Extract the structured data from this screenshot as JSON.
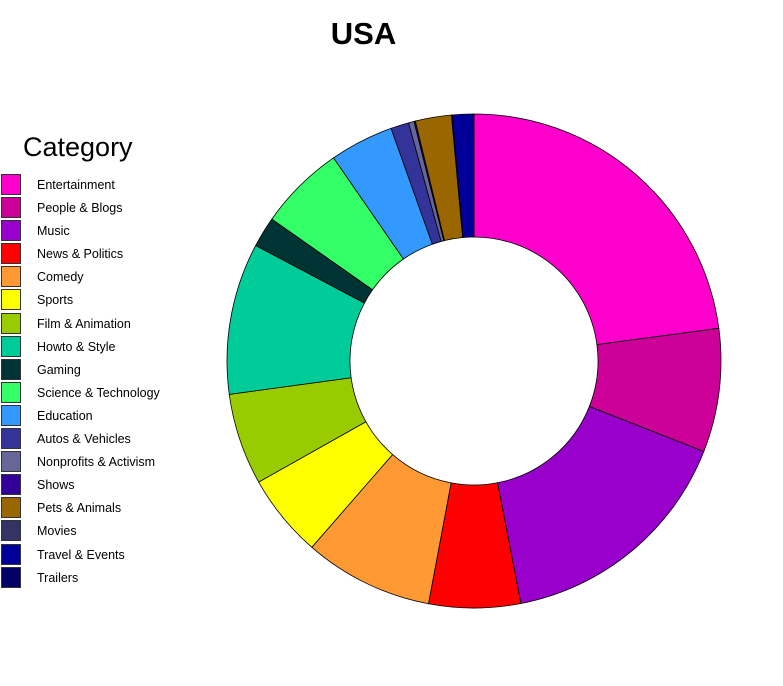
{
  "chart_data": {
    "type": "pie",
    "variant": "donut",
    "title": "USA",
    "legend_title": "Category",
    "legend_position": "left",
    "start": "top, clockwise",
    "slices": [
      {
        "name": "Entertainment",
        "value": 25.2,
        "color": "#ff00cc"
      },
      {
        "name": "People & Blogs",
        "value": 8.9,
        "color": "#cc0099"
      },
      {
        "name": "Music",
        "value": 17.6,
        "color": "#9900cc"
      },
      {
        "name": "News & Politics",
        "value": 6.6,
        "color": "#ff0000"
      },
      {
        "name": "Comedy",
        "value": 9.3,
        "color": "#ff9933"
      },
      {
        "name": "Sports",
        "value": 6.0,
        "color": "#ffff00"
      },
      {
        "name": "Film & Animation",
        "value": 6.6,
        "color": "#99cc00"
      },
      {
        "name": "Howto & Style",
        "value": 10.9,
        "color": "#00cc99"
      },
      {
        "name": "Gaming",
        "value": 2.2,
        "color": "#003333"
      },
      {
        "name": "Science & Technology",
        "value": 6.2,
        "color": "#33ff66"
      },
      {
        "name": "Education",
        "value": 4.6,
        "color": "#3399ff"
      },
      {
        "name": "Autos & Vehicles",
        "value": 1.3,
        "color": "#333399"
      },
      {
        "name": "Nonprofits & Activism",
        "value": 0.4,
        "color": "#666699"
      },
      {
        "name": "Shows",
        "value": 0.1,
        "color": "#330099"
      },
      {
        "name": "Pets & Animals",
        "value": 2.6,
        "color": "#996600"
      },
      {
        "name": "Movies",
        "value": 0.05,
        "color": "#333366"
      },
      {
        "name": "Travel & Events",
        "value": 1.5,
        "color": "#000099"
      },
      {
        "name": "Trailers",
        "value": 0.05,
        "color": "#000066"
      }
    ]
  }
}
